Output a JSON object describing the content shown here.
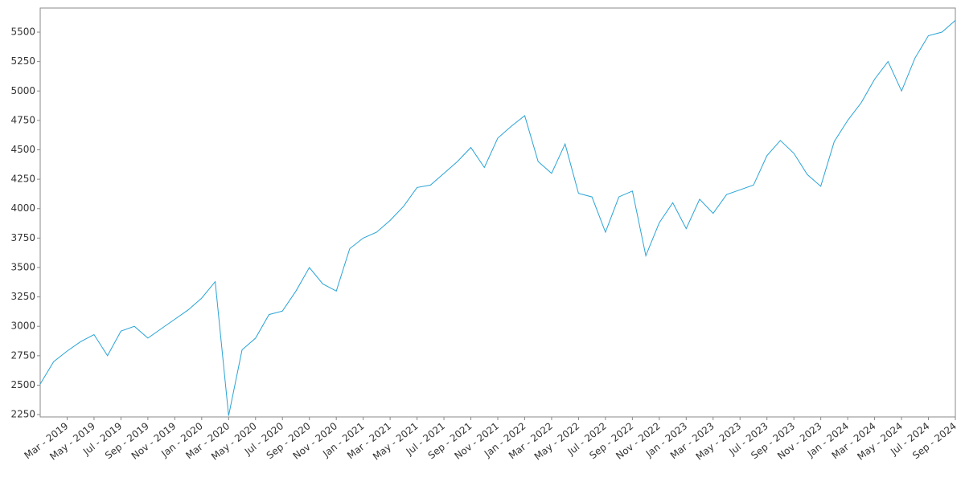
{
  "chart_data": {
    "type": "line",
    "x": [
      "2019-01",
      "2019-02",
      "2019-03",
      "2019-04",
      "2019-05",
      "2019-06",
      "2019-07",
      "2019-08",
      "2019-09",
      "2019-10",
      "2019-11",
      "2019-12",
      "2020-01",
      "2020-02",
      "2020-03",
      "2020-04",
      "2020-05",
      "2020-06",
      "2020-07",
      "2020-08",
      "2020-09",
      "2020-10",
      "2020-11",
      "2020-12",
      "2021-01",
      "2021-02",
      "2021-03",
      "2021-04",
      "2021-05",
      "2021-06",
      "2021-07",
      "2021-08",
      "2021-09",
      "2021-10",
      "2021-11",
      "2021-12",
      "2022-01",
      "2022-02",
      "2022-03",
      "2022-04",
      "2022-05",
      "2022-06",
      "2022-07",
      "2022-08",
      "2022-09",
      "2022-10",
      "2022-11",
      "2022-12",
      "2023-01",
      "2023-02",
      "2023-03",
      "2023-04",
      "2023-05",
      "2023-06",
      "2023-07",
      "2023-08",
      "2023-09",
      "2023-10",
      "2023-11",
      "2023-12",
      "2024-01",
      "2024-02",
      "2024-03",
      "2024-04",
      "2024-05",
      "2024-06",
      "2024-07",
      "2024-08",
      "2024-09"
    ],
    "series": [
      {
        "color": "#29a3d6",
        "values": [
          2510,
          2700,
          2790,
          2870,
          2930,
          2750,
          2960,
          3000,
          2900,
          2980,
          3060,
          3140,
          3240,
          3380,
          2240,
          2800,
          2900,
          3100,
          3130,
          3300,
          3500,
          3360,
          3300,
          3660,
          3750,
          3800,
          3900,
          4020,
          4180,
          4200,
          4300,
          4400,
          4520,
          4350,
          4600,
          4700,
          4790,
          4400,
          4300,
          4550,
          4130,
          4100,
          3800,
          4100,
          4150,
          3600,
          3880,
          4050,
          3830,
          4080,
          3960,
          4120,
          4160,
          4200,
          4450,
          4580,
          4470,
          4290,
          4190,
          4570,
          4750,
          4900,
          5100,
          5250,
          5000,
          5280,
          5470,
          5500,
          5600
        ]
      }
    ],
    "xlim": [
      "2019-01",
      "2024-09"
    ],
    "xticks": [
      {
        "value": "2019-03",
        "label": "Mar - 2019"
      },
      {
        "value": "2019-05",
        "label": "May - 2019"
      },
      {
        "value": "2019-07",
        "label": "Jul - 2019"
      },
      {
        "value": "2019-09",
        "label": "Sep - 2019"
      },
      {
        "value": "2019-11",
        "label": "Nov - 2019"
      },
      {
        "value": "2020-01",
        "label": "Jan - 2020"
      },
      {
        "value": "2020-03",
        "label": "Mar - 2020"
      },
      {
        "value": "2020-05",
        "label": "May - 2020"
      },
      {
        "value": "2020-07",
        "label": "Jul - 2020"
      },
      {
        "value": "2020-09",
        "label": "Sep - 2020"
      },
      {
        "value": "2020-11",
        "label": "Nov - 2020"
      },
      {
        "value": "2021-01",
        "label": "Jan - 2021"
      },
      {
        "value": "2021-03",
        "label": "Mar - 2021"
      },
      {
        "value": "2021-05",
        "label": "May - 2021"
      },
      {
        "value": "2021-07",
        "label": "Jul - 2021"
      },
      {
        "value": "2021-09",
        "label": "Sep - 2021"
      },
      {
        "value": "2021-11",
        "label": "Nov - 2021"
      },
      {
        "value": "2022-01",
        "label": "Jan - 2022"
      },
      {
        "value": "2022-03",
        "label": "Mar - 2022"
      },
      {
        "value": "2022-05",
        "label": "May - 2022"
      },
      {
        "value": "2022-07",
        "label": "Jul - 2022"
      },
      {
        "value": "2022-09",
        "label": "Sep - 2022"
      },
      {
        "value": "2022-11",
        "label": "Nov - 2022"
      },
      {
        "value": "2023-01",
        "label": "Jan - 2023"
      },
      {
        "value": "2023-03",
        "label": "Mar - 2023"
      },
      {
        "value": "2023-05",
        "label": "May - 2023"
      },
      {
        "value": "2023-07",
        "label": "Jul - 2023"
      },
      {
        "value": "2023-09",
        "label": "Sep - 2023"
      },
      {
        "value": "2023-11",
        "label": "Nov - 2023"
      },
      {
        "value": "2024-01",
        "label": "Jan - 2024"
      },
      {
        "value": "2024-03",
        "label": "Mar - 2024"
      },
      {
        "value": "2024-05",
        "label": "May - 2024"
      },
      {
        "value": "2024-07",
        "label": "Jul - 2024"
      },
      {
        "value": "2024-09",
        "label": "Sep - 2024"
      }
    ],
    "ylim": [
      2230,
      5705
    ],
    "yticks": [
      2250,
      2500,
      2750,
      3000,
      3250,
      3500,
      3750,
      4000,
      4250,
      4500,
      4750,
      5000,
      5250,
      5500
    ]
  }
}
